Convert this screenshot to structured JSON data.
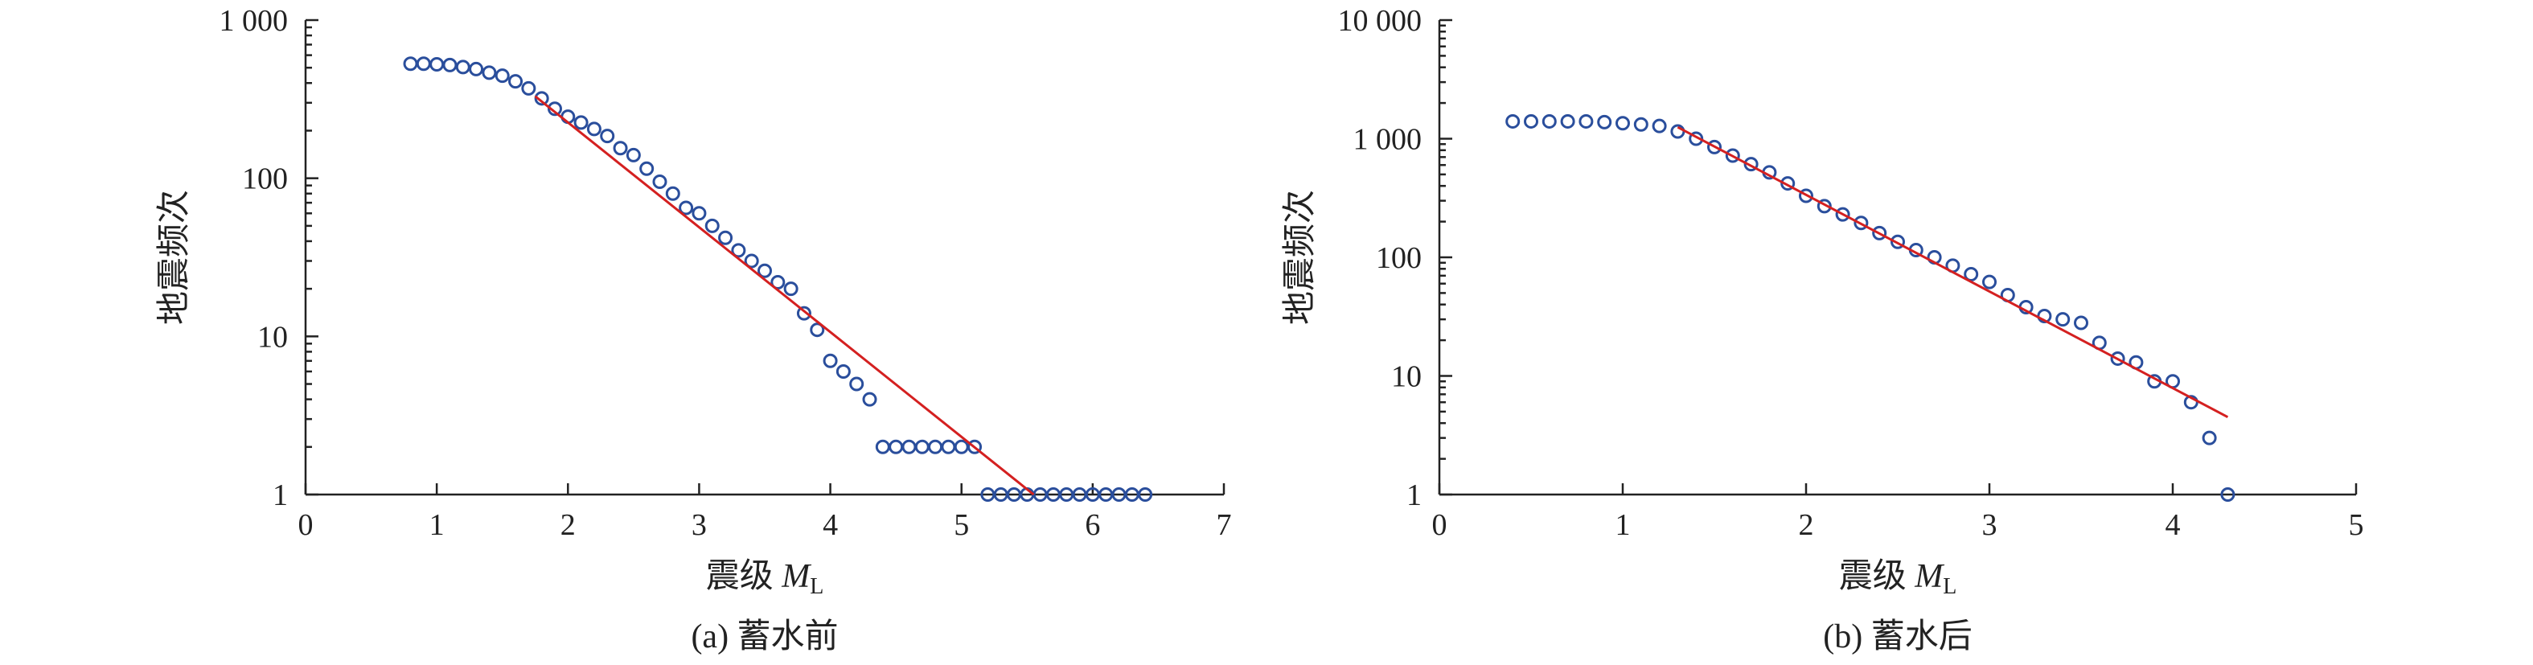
{
  "chart_data": [
    {
      "type": "scatter",
      "caption": "(a) 蓄水前",
      "ylabel": "地震频次",
      "xlabel_main": "震级 ",
      "xlabel_var": "M",
      "xlabel_sub": "L",
      "xlim": [
        0,
        7
      ],
      "ylim": [
        1,
        1000
      ],
      "yscale": "log",
      "xticks": [
        0,
        1,
        2,
        3,
        4,
        5,
        6,
        7
      ],
      "xtick_labels": [
        "0",
        "1",
        "2",
        "3",
        "4",
        "5",
        "6",
        "7"
      ],
      "yticks": [
        1,
        10,
        100,
        1000
      ],
      "ytick_labels": [
        "1",
        "10",
        "100",
        "1 000"
      ],
      "grid": false,
      "marker_color": "#2a4e9c",
      "fit_color": "#d42020",
      "series": [
        {
          "kind": "points",
          "x": [
            0.8,
            0.9,
            1.0,
            1.1,
            1.2,
            1.3,
            1.4,
            1.5,
            1.6,
            1.7,
            1.8,
            1.9,
            2.0,
            2.1,
            2.2,
            2.3,
            2.4,
            2.5,
            2.6,
            2.7,
            2.8,
            2.9,
            3.0,
            3.1,
            3.2,
            3.3,
            3.4,
            3.5,
            3.6,
            3.7,
            3.8,
            3.9,
            4.0,
            4.1,
            4.2,
            4.3,
            4.4,
            4.5,
            4.6,
            4.7,
            4.8,
            4.9,
            5.0,
            5.1,
            5.2,
            5.3,
            5.4,
            5.5,
            5.6,
            5.7,
            5.8,
            5.9,
            6.0,
            6.1,
            6.2,
            6.3,
            6.4
          ],
          "y": [
            530,
            530,
            525,
            520,
            505,
            490,
            465,
            445,
            410,
            370,
            320,
            275,
            245,
            225,
            205,
            185,
            155,
            140,
            115,
            95,
            80,
            65,
            60,
            50,
            42,
            35,
            30,
            26,
            22,
            20,
            14,
            11,
            7,
            6,
            5,
            4,
            2,
            2,
            2,
            2,
            2,
            2,
            2,
            2,
            1,
            1,
            1,
            1,
            1,
            1,
            1,
            1,
            1,
            1,
            1,
            1,
            1
          ]
        },
        {
          "kind": "fit-line",
          "x": [
            1.75,
            5.55
          ],
          "y": [
            330,
            1
          ]
        }
      ]
    },
    {
      "type": "scatter",
      "caption": "(b) 蓄水后",
      "ylabel": "地震频次",
      "xlabel_main": "震级 ",
      "xlabel_var": "M",
      "xlabel_sub": "L",
      "xlim": [
        0,
        5
      ],
      "ylim": [
        1,
        10000
      ],
      "yscale": "log",
      "xticks": [
        0,
        1,
        2,
        3,
        4,
        5
      ],
      "xtick_labels": [
        "0",
        "1",
        "2",
        "3",
        "4",
        "5"
      ],
      "yticks": [
        1,
        10,
        100,
        1000,
        10000
      ],
      "ytick_labels": [
        "1",
        "10",
        "100",
        "1 000",
        "10 000"
      ],
      "grid": false,
      "marker_color": "#2a4e9c",
      "fit_color": "#d42020",
      "series": [
        {
          "kind": "points",
          "x": [
            0.4,
            0.5,
            0.6,
            0.7,
            0.8,
            0.9,
            1.0,
            1.1,
            1.2,
            1.3,
            1.4,
            1.5,
            1.6,
            1.7,
            1.8,
            1.9,
            2.0,
            2.1,
            2.2,
            2.3,
            2.4,
            2.5,
            2.6,
            2.7,
            2.8,
            2.9,
            3.0,
            3.1,
            3.2,
            3.3,
            3.4,
            3.5,
            3.6,
            3.7,
            3.8,
            3.9,
            4.0,
            4.1,
            4.2,
            4.3
          ],
          "y": [
            1400,
            1400,
            1400,
            1400,
            1400,
            1380,
            1350,
            1320,
            1280,
            1150,
            1000,
            850,
            720,
            610,
            520,
            420,
            330,
            270,
            230,
            195,
            160,
            135,
            115,
            100,
            85,
            72,
            62,
            48,
            38,
            32,
            30,
            28,
            19,
            14,
            13,
            9,
            9,
            6,
            3,
            1
          ]
        },
        {
          "kind": "fit-line",
          "x": [
            1.3,
            4.3
          ],
          "y": [
            1250,
            4.5
          ]
        }
      ]
    }
  ]
}
